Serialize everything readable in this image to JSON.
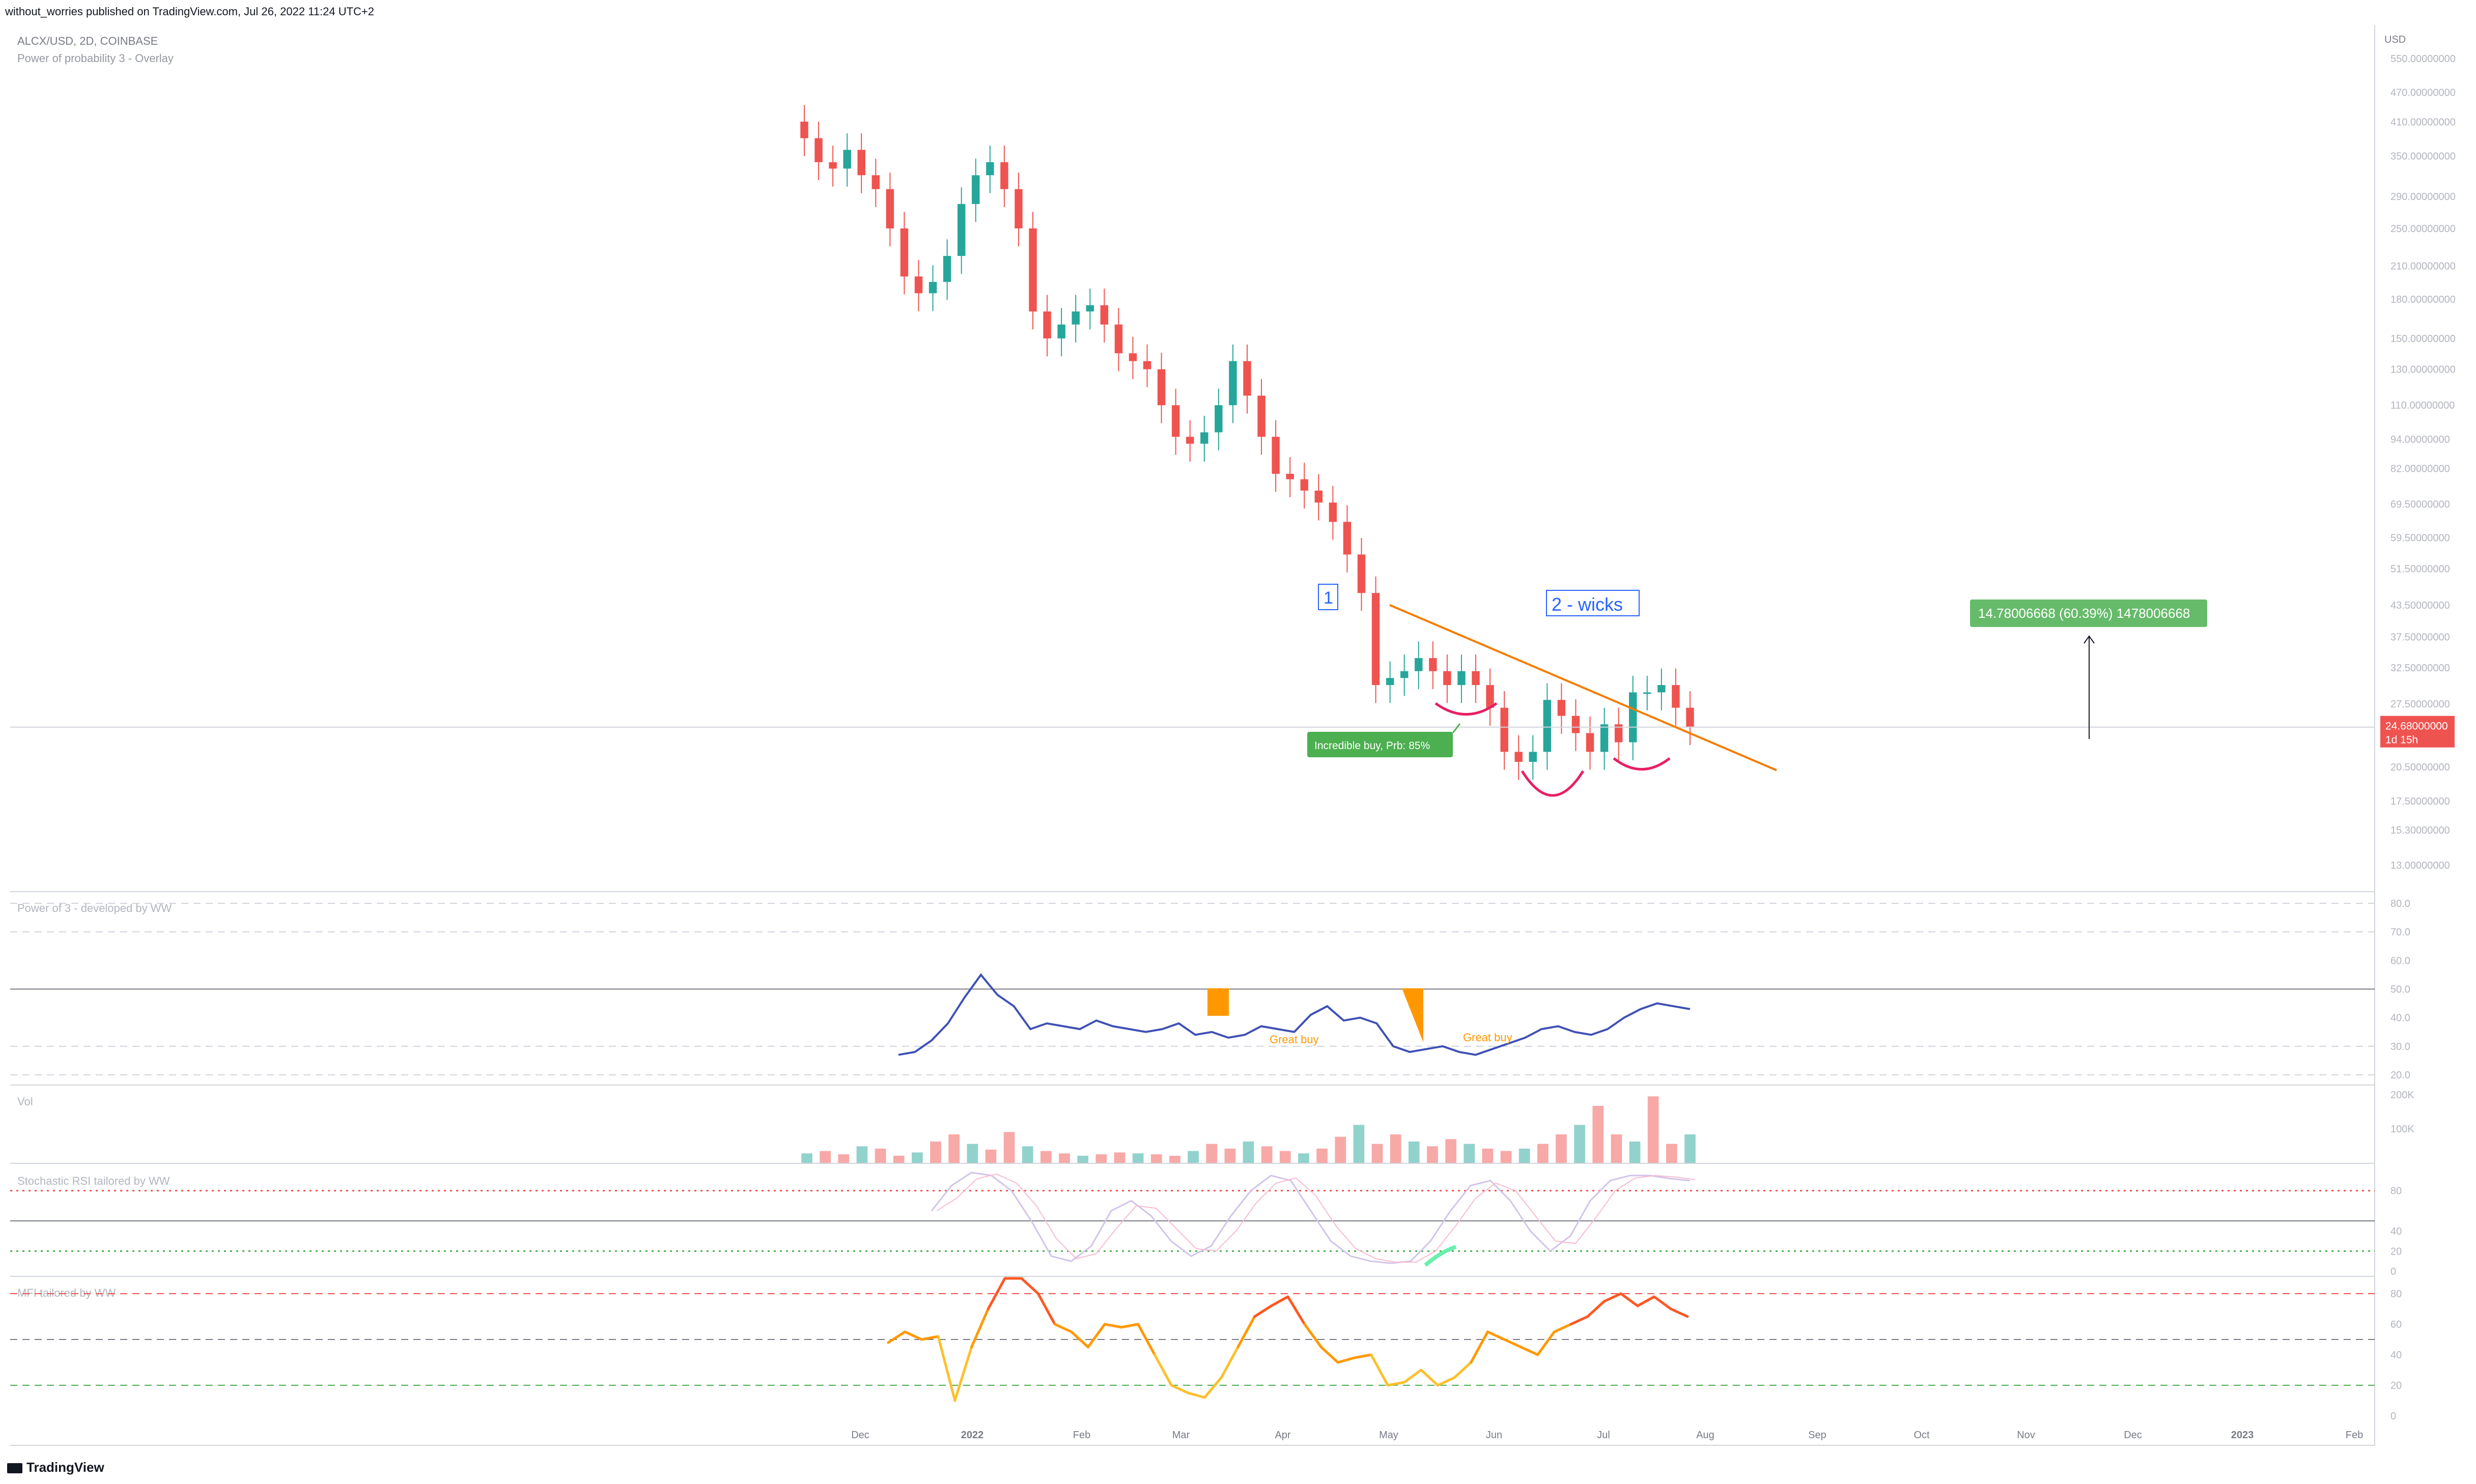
{
  "header": {
    "published": "without_worries published on TradingView.com, Jul 26, 2022 11:24 UTC+2",
    "symbol_line": "ALCX/USD, 2D, COINBASE",
    "indicator_line": "Power of probability 3 - Overlay"
  },
  "footer": {
    "brand": "TradingView"
  },
  "colors": {
    "up": "#26a69a",
    "down": "#ef5350",
    "trendline": "#f57c00",
    "callout": "#4caf50",
    "label_blue": "#2962ff",
    "price_tag": "#ef5350"
  },
  "chart_data": [
    {
      "type": "candlestick",
      "panel": "price",
      "symbol": "ALCX/USD",
      "timeframe": "2D",
      "exchange": "COINBASE",
      "axis_unit": "USD",
      "y_scale": "log",
      "ylim": [
        13,
        570
      ],
      "y_ticks": [
        "550.00000000",
        "470.00000000",
        "410.00000000",
        "350.00000000",
        "290.00000000",
        "250.00000000",
        "210.00000000",
        "180.00000000",
        "150.00000000",
        "130.00000000",
        "110.00000000",
        "94.00000000",
        "82.00000000",
        "69.50000000",
        "59.50000000",
        "51.50000000",
        "43.50000000",
        "37.50000000",
        "32.50000000",
        "27.50000000",
        "20.50000000",
        "17.50000000",
        "15.30000000",
        "13.00000000"
      ],
      "x_ticks": [
        "Dec",
        "2022",
        "Feb",
        "Mar",
        "Apr",
        "May",
        "Jun",
        "Jul",
        "Aug",
        "Sep",
        "Oct",
        "Nov",
        "Dec",
        "2023",
        "Feb"
      ],
      "last_price": "24.68000000",
      "countdown": "1d 15h",
      "closes": [
        380,
        340,
        330,
        360,
        320,
        300,
        250,
        200,
        185,
        195,
        220,
        280,
        320,
        340,
        300,
        250,
        170,
        150,
        160,
        170,
        175,
        160,
        140,
        135,
        130,
        110,
        95,
        92,
        97,
        110,
        135,
        115,
        95,
        80,
        78,
        74,
        70,
        64,
        55,
        46,
        30,
        31,
        32,
        34,
        32,
        30,
        32,
        30,
        27,
        22,
        21,
        22,
        28,
        26,
        24,
        22,
        25,
        23,
        29,
        29,
        30,
        27,
        24.68
      ],
      "annotations": {
        "box_1": "1",
        "box_2": "2 - wicks",
        "buy_label": "Incredible buy, Prb: 85%",
        "measure_label": "14.78006668 (60.39%) 1478006668"
      }
    },
    {
      "type": "line",
      "panel": "power3",
      "name": "Power of 3 - developed by WW",
      "ylim": [
        20,
        80
      ],
      "y_ticks": [
        "80.0",
        "70.0",
        "60.0",
        "50.0",
        "40.0",
        "30.0",
        "20.0"
      ],
      "annotation_1": "Great buy",
      "annotation_2": "Great buy",
      "values": [
        27,
        28,
        32,
        38,
        47,
        55,
        48,
        44,
        36,
        38,
        37,
        36,
        39,
        37,
        36,
        35,
        36,
        38,
        34,
        35,
        33,
        34,
        37,
        36,
        35,
        41,
        44,
        39,
        40,
        38,
        30,
        28,
        29,
        30,
        28,
        27,
        29,
        31,
        33,
        36,
        37,
        35,
        34,
        36,
        40,
        43,
        45,
        44,
        43
      ]
    },
    {
      "type": "bar",
      "panel": "volume",
      "name": "Vol",
      "y_ticks": [
        "200K",
        "100K"
      ],
      "values": [
        20,
        25,
        18,
        35,
        30,
        15,
        22,
        45,
        60,
        40,
        28,
        65,
        35,
        25,
        20,
        15,
        18,
        22,
        20,
        18,
        15,
        25,
        40,
        30,
        45,
        35,
        25,
        20,
        30,
        55,
        80,
        40,
        60,
        45,
        35,
        50,
        40,
        30,
        25,
        30,
        40,
        60,
        80,
        120,
        60,
        45,
        140,
        40,
        60
      ]
    },
    {
      "type": "line",
      "panel": "stoch_rsi",
      "name": "Stochastic RSI tailored by WW",
      "ylim": [
        0,
        100
      ],
      "y_ticks": [
        "80",
        "40",
        "20",
        "0"
      ],
      "values": [
        60,
        85,
        98,
        95,
        80,
        50,
        15,
        10,
        25,
        60,
        70,
        55,
        30,
        15,
        25,
        55,
        80,
        95,
        90,
        60,
        30,
        15,
        10,
        8,
        10,
        30,
        60,
        85,
        90,
        70,
        40,
        20,
        35,
        70,
        90,
        95,
        95,
        92,
        90
      ]
    },
    {
      "type": "line",
      "panel": "mfi",
      "name": "MFI tailored by WW",
      "ylim": [
        0,
        90
      ],
      "y_ticks": [
        "80",
        "60",
        "40",
        "20",
        "0"
      ],
      "values": [
        48,
        55,
        50,
        52,
        10,
        45,
        70,
        95,
        95,
        80,
        60,
        55,
        45,
        60,
        58,
        60,
        40,
        20,
        15,
        12,
        25,
        45,
        65,
        72,
        78,
        60,
        45,
        35,
        38,
        40,
        20,
        22,
        30,
        20,
        25,
        35,
        55,
        50,
        45,
        40,
        55,
        60,
        65,
        75,
        80,
        72,
        78,
        70,
        65
      ]
    }
  ]
}
